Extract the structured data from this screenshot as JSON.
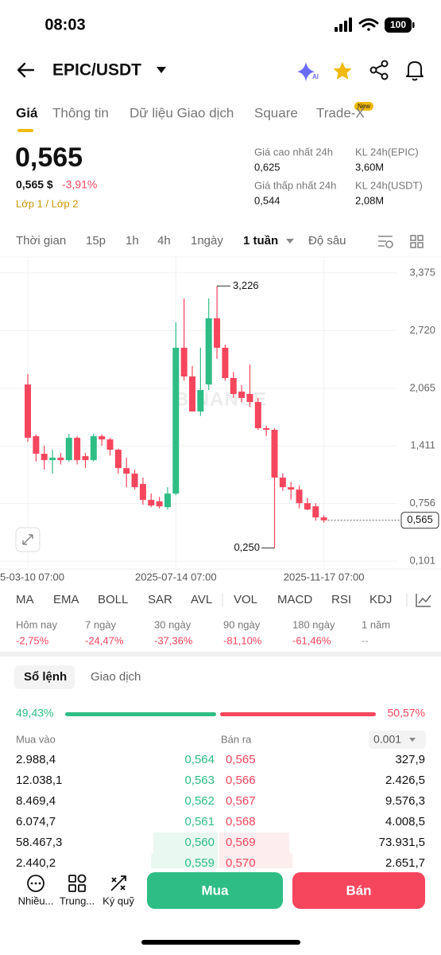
{
  "status_bar": {
    "time": "08:03",
    "battery": "100"
  },
  "header": {
    "pair": "EPIC/USDT",
    "ai": "AI"
  },
  "tabs": [
    "Giá",
    "Thông tin",
    "Dữ liệu Giao dịch",
    "Square",
    "Trade-X"
  ],
  "tab_badge": "New",
  "price": {
    "last": "0,565",
    "usd": "0,565 $",
    "change": "-3,91%",
    "layer": "Lớp 1 / Lớp 2"
  },
  "stats": [
    {
      "label": "Giá cao nhất 24h",
      "value": "0,625"
    },
    {
      "label": "KL 24h(EPIC)",
      "value": "3,60M"
    },
    {
      "label": "Giá thấp nhất 24h",
      "value": "0,544"
    },
    {
      "label": "KL 24h(USDT)",
      "value": "2,08M"
    }
  ],
  "intervals": [
    "Thời gian",
    "15p",
    "1h",
    "4h",
    "1ngày",
    "1 tuần",
    "Độ sâu"
  ],
  "chart_data": {
    "type": "candlestick",
    "watermark": "BINANCE",
    "categories": [
      "5-03-10 07:00",
      null,
      null,
      null,
      null,
      null,
      null,
      null,
      null,
      null,
      null,
      null,
      null,
      null,
      null,
      null,
      null,
      null,
      "2025-07-14 07:00",
      null,
      null,
      null,
      null,
      null,
      null,
      null,
      null,
      null,
      null,
      null,
      null,
      null,
      null,
      null,
      null,
      null,
      "2025-11-17 07:00"
    ],
    "open": [
      2.108,
      1.52,
      1.321,
      1.249,
      1.276,
      1.249,
      1.502,
      1.294,
      1.249,
      1.52,
      1.484,
      1.367,
      1.158,
      1.095,
      0.978,
      0.797,
      0.78,
      0.715,
      0.869,
      2.525,
      2.199,
      1.801,
      2.108,
      2.859,
      2.525,
      2.181,
      2.027,
      2.0,
      1.909,
      1.611,
      1.593,
      1.05,
      0.941,
      0.914,
      0.76,
      0.724,
      0.598
    ],
    "high": [
      2.226,
      1.54,
      1.412,
      1.367,
      1.33,
      1.548,
      1.52,
      1.33,
      1.548,
      1.54,
      1.502,
      1.38,
      1.276,
      1.14,
      1.05,
      0.869,
      0.83,
      0.941,
      2.814,
      3.085,
      2.317,
      2.525,
      3.085,
      3.226,
      2.56,
      2.25,
      2.1,
      2.335,
      1.955,
      1.64,
      1.611,
      1.1,
      1.0,
      0.96,
      0.82,
      0.76,
      0.62
    ],
    "low": [
      1.457,
      1.231,
      1.14,
      1.095,
      1.2,
      1.231,
      1.2,
      1.158,
      1.231,
      1.412,
      1.3,
      1.095,
      0.941,
      0.914,
      0.742,
      0.715,
      0.7,
      0.688,
      0.85,
      2.15,
      1.801,
      1.75,
      2.045,
      2.4,
      2.15,
      1.955,
      1.909,
      1.85,
      1.593,
      1.52,
      0.25,
      0.9,
      0.8,
      0.7,
      0.68,
      0.56,
      0.54
    ],
    "close": [
      1.502,
      1.321,
      1.249,
      1.276,
      1.249,
      1.502,
      1.249,
      1.249,
      1.52,
      1.484,
      1.367,
      1.158,
      1.095,
      0.941,
      0.797,
      0.733,
      0.724,
      0.869,
      2.525,
      2.199,
      1.801,
      2.045,
      2.859,
      2.525,
      2.181,
      2.0,
      1.955,
      1.909,
      1.611,
      1.593,
      1.05,
      0.941,
      0.914,
      0.76,
      0.688,
      0.598,
      0.565
    ],
    "ylim": [
      0.03,
      3.555
    ],
    "yticks": [
      {
        "value": 3.375,
        "label": "3,375"
      },
      {
        "value": 2.72,
        "label": "2,720"
      },
      {
        "value": 2.065,
        "label": "2,065"
      },
      {
        "value": 1.411,
        "label": "1,411"
      },
      {
        "value": 0.756,
        "label": "0,756"
      },
      {
        "value": 0.101,
        "label": "0,101"
      }
    ],
    "grid": true,
    "up_color": "#2ebd85",
    "down_color": "#f6465d",
    "high_label": "3,226",
    "low_label": "0,250",
    "last_label": "0,565"
  },
  "indicators": [
    "MA",
    "EMA",
    "BOLL",
    "SAR",
    "AVL",
    "VOL",
    "MACD",
    "RSI",
    "KDJ"
  ],
  "performance": [
    {
      "period": "Hôm nay",
      "change": "-2,75%"
    },
    {
      "period": "7 ngày",
      "change": "-24,47%"
    },
    {
      "period": "30 ngày",
      "change": "-37,36%"
    },
    {
      "period": "90 ngày",
      "change": "-81,10%"
    },
    {
      "period": "180 ngày",
      "change": "-61,46%"
    },
    {
      "period": "1 năm",
      "change": "--"
    }
  ],
  "orderbook": {
    "tabs": [
      "Sổ lệnh",
      "Giao dịch"
    ],
    "buy_ratio": "49,43%",
    "sell_ratio": "50,57%",
    "bid_header": "Mua vào",
    "ask_header": "Bán ra",
    "precision": "0.001",
    "rows": [
      [
        "2.988,4",
        "0,564",
        "0,565",
        "327,9"
      ],
      [
        "12.038,1",
        "0,563",
        "0,566",
        "2.426,5"
      ],
      [
        "8.469,4",
        "0,562",
        "0,567",
        "9.576,3"
      ],
      [
        "6.074,7",
        "0,561",
        "0,568",
        "4.008,5"
      ],
      [
        "58.467,3",
        "0,560",
        "0,569",
        "73.931,5"
      ],
      [
        "2.440,2",
        "0,559",
        "0,570",
        "2.651,7"
      ]
    ]
  },
  "bottom_bar": {
    "actions": [
      "Nhiều...",
      "Trung...",
      "Ký quỹ"
    ],
    "buy": "Mua",
    "sell": "Bán"
  }
}
